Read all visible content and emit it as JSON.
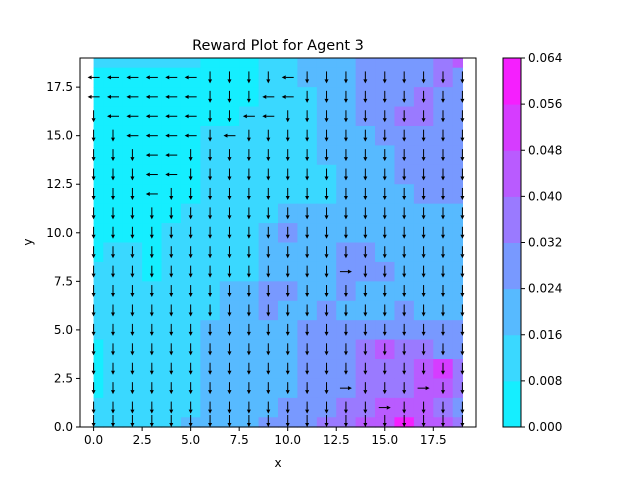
{
  "chart_data": {
    "type": "heatmap",
    "title": "Reward Plot for Agent 3",
    "xlabel": "x",
    "ylabel": "y",
    "xlim": [
      -0.7,
      19.7
    ],
    "ylim": [
      0,
      19
    ],
    "x_ticks": [
      0,
      2.5,
      5,
      7.5,
      10,
      12.5,
      15,
      17.5
    ],
    "x_tick_labels": [
      "0.0",
      "2.5",
      "5.0",
      "7.5",
      "10.0",
      "12.5",
      "15.0",
      "17.5"
    ],
    "y_ticks": [
      0,
      2.5,
      5,
      7.5,
      10,
      12.5,
      15,
      17.5
    ],
    "y_tick_labels": [
      "0.0",
      "2.5",
      "5.0",
      "7.5",
      "10.0",
      "12.5",
      "15.0",
      "17.5"
    ],
    "grid_x_range": [
      0,
      19
    ],
    "grid_y_range": [
      0,
      19
    ],
    "colorbar": {
      "levels": [
        0.0,
        0.008,
        0.016,
        0.024,
        0.032,
        0.04,
        0.048,
        0.056,
        0.064
      ],
      "tick_labels": [
        "0.000",
        "0.008",
        "0.016",
        "0.024",
        "0.032",
        "0.040",
        "0.048",
        "0.056",
        "0.064"
      ],
      "band_colors": [
        "#15eeff",
        "#3ad8ff",
        "#57baff",
        "#7899ff",
        "#9a7aff",
        "#b95bff",
        "#d63cff",
        "#f51ffe"
      ]
    },
    "reward_grid_rows_top_to_bottom": [
      [
        0.012,
        0.01,
        0.01,
        0.012,
        0.01,
        0.01,
        0.004,
        0.004,
        0.006,
        0.009,
        0.014,
        0.018,
        0.02,
        0.022,
        0.024,
        0.026,
        0.028,
        0.03,
        0.034,
        0.04
      ],
      [
        0.006,
        0.002,
        0.002,
        0.004,
        0.004,
        0.006,
        0.004,
        0.002,
        0.002,
        0.008,
        0.012,
        0.016,
        0.018,
        0.022,
        0.025,
        0.026,
        0.028,
        0.03,
        0.034,
        0.03
      ],
      [
        0.002,
        0.002,
        0.002,
        0.002,
        0.002,
        0.004,
        0.002,
        0.002,
        0.004,
        0.008,
        0.012,
        0.014,
        0.016,
        0.022,
        0.024,
        0.026,
        0.03,
        0.032,
        0.028,
        0.024
      ],
      [
        0.004,
        0.003,
        0.004,
        0.004,
        0.002,
        0.004,
        0.004,
        0.006,
        0.008,
        0.01,
        0.012,
        0.014,
        0.016,
        0.022,
        0.024,
        0.026,
        0.032,
        0.036,
        0.03,
        0.026
      ],
      [
        0.004,
        0.004,
        0.004,
        0.004,
        0.004,
        0.004,
        0.01,
        0.01,
        0.01,
        0.012,
        0.012,
        0.014,
        0.016,
        0.02,
        0.022,
        0.024,
        0.028,
        0.03,
        0.026,
        0.024
      ],
      [
        0.004,
        0.004,
        0.004,
        0.004,
        0.004,
        0.006,
        0.01,
        0.012,
        0.012,
        0.012,
        0.014,
        0.014,
        0.016,
        0.018,
        0.02,
        0.022,
        0.024,
        0.026,
        0.024,
        0.024
      ],
      [
        0.004,
        0.004,
        0.004,
        0.004,
        0.004,
        0.006,
        0.008,
        0.012,
        0.012,
        0.012,
        0.012,
        0.014,
        0.014,
        0.016,
        0.018,
        0.02,
        0.024,
        0.026,
        0.024,
        0.024
      ],
      [
        0.004,
        0.004,
        0.004,
        0.004,
        0.004,
        0.006,
        0.01,
        0.012,
        0.012,
        0.014,
        0.014,
        0.014,
        0.014,
        0.016,
        0.018,
        0.02,
        0.022,
        0.024,
        0.024,
        0.024
      ],
      [
        0.004,
        0.006,
        0.004,
        0.004,
        0.004,
        0.008,
        0.012,
        0.012,
        0.014,
        0.014,
        0.016,
        0.018,
        0.016,
        0.016,
        0.018,
        0.02,
        0.022,
        0.022,
        0.022,
        0.022
      ],
      [
        0.004,
        0.006,
        0.006,
        0.006,
        0.008,
        0.01,
        0.012,
        0.014,
        0.014,
        0.016,
        0.024,
        0.016,
        0.016,
        0.016,
        0.018,
        0.018,
        0.02,
        0.022,
        0.022,
        0.022
      ],
      [
        0.006,
        0.008,
        0.008,
        0.006,
        0.008,
        0.01,
        0.012,
        0.014,
        0.014,
        0.016,
        0.018,
        0.016,
        0.016,
        0.024,
        0.03,
        0.02,
        0.02,
        0.022,
        0.022,
        0.022
      ],
      [
        0.008,
        0.01,
        0.01,
        0.006,
        0.01,
        0.012,
        0.012,
        0.014,
        0.014,
        0.018,
        0.018,
        0.018,
        0.018,
        0.024,
        0.028,
        0.024,
        0.02,
        0.02,
        0.022,
        0.022
      ],
      [
        0.008,
        0.01,
        0.01,
        0.008,
        0.01,
        0.012,
        0.014,
        0.016,
        0.018,
        0.024,
        0.024,
        0.02,
        0.022,
        0.026,
        0.022,
        0.022,
        0.022,
        0.022,
        0.022,
        0.022
      ],
      [
        0.008,
        0.01,
        0.012,
        0.012,
        0.012,
        0.012,
        0.014,
        0.016,
        0.02,
        0.024,
        0.022,
        0.022,
        0.024,
        0.022,
        0.022,
        0.022,
        0.026,
        0.022,
        0.022,
        0.022
      ],
      [
        0.008,
        0.01,
        0.012,
        0.012,
        0.012,
        0.014,
        0.016,
        0.018,
        0.02,
        0.022,
        0.022,
        0.024,
        0.026,
        0.028,
        0.026,
        0.03,
        0.024,
        0.024,
        0.024,
        0.024
      ],
      [
        0.006,
        0.008,
        0.01,
        0.01,
        0.012,
        0.014,
        0.016,
        0.018,
        0.022,
        0.02,
        0.022,
        0.024,
        0.028,
        0.03,
        0.034,
        0.04,
        0.038,
        0.036,
        0.03,
        0.026
      ],
      [
        0.006,
        0.008,
        0.01,
        0.01,
        0.012,
        0.014,
        0.016,
        0.018,
        0.02,
        0.02,
        0.022,
        0.024,
        0.026,
        0.028,
        0.032,
        0.036,
        0.032,
        0.04,
        0.05,
        0.034
      ],
      [
        0.006,
        0.008,
        0.01,
        0.01,
        0.012,
        0.014,
        0.016,
        0.018,
        0.02,
        0.02,
        0.022,
        0.024,
        0.026,
        0.03,
        0.036,
        0.038,
        0.036,
        0.042,
        0.04,
        0.034
      ],
      [
        0.008,
        0.01,
        0.012,
        0.012,
        0.012,
        0.014,
        0.016,
        0.018,
        0.02,
        0.022,
        0.024,
        0.026,
        0.03,
        0.036,
        0.034,
        0.04,
        0.046,
        0.04,
        0.036,
        0.03
      ],
      [
        0.01,
        0.012,
        0.012,
        0.014,
        0.014,
        0.016,
        0.018,
        0.02,
        0.022,
        0.024,
        0.026,
        0.03,
        0.036,
        0.038,
        0.04,
        0.046,
        0.064,
        0.046,
        0.04,
        0.034
      ]
    ],
    "quiver": {
      "default_direction": "down",
      "left_arrows": [
        [
          0,
          18
        ],
        [
          1,
          18
        ],
        [
          2,
          18
        ],
        [
          3,
          18
        ],
        [
          4,
          18
        ],
        [
          5,
          18
        ],
        [
          10,
          18
        ],
        [
          0,
          17
        ],
        [
          1,
          17
        ],
        [
          2,
          17
        ],
        [
          3,
          17
        ],
        [
          4,
          17
        ],
        [
          5,
          17
        ],
        [
          9,
          17
        ],
        [
          10,
          17
        ],
        [
          1,
          16
        ],
        [
          2,
          16
        ],
        [
          3,
          16
        ],
        [
          4,
          16
        ],
        [
          5,
          16
        ],
        [
          8,
          16
        ],
        [
          9,
          16
        ],
        [
          2,
          15
        ],
        [
          3,
          15
        ],
        [
          4,
          15
        ],
        [
          5,
          15
        ],
        [
          7,
          15
        ],
        [
          3,
          14
        ],
        [
          4,
          14
        ],
        [
          3,
          13
        ],
        [
          4,
          13
        ],
        [
          3,
          12
        ]
      ],
      "right_arrows": [
        [
          13,
          8
        ],
        [
          13,
          2
        ],
        [
          17,
          2
        ],
        [
          15,
          1
        ]
      ]
    }
  }
}
